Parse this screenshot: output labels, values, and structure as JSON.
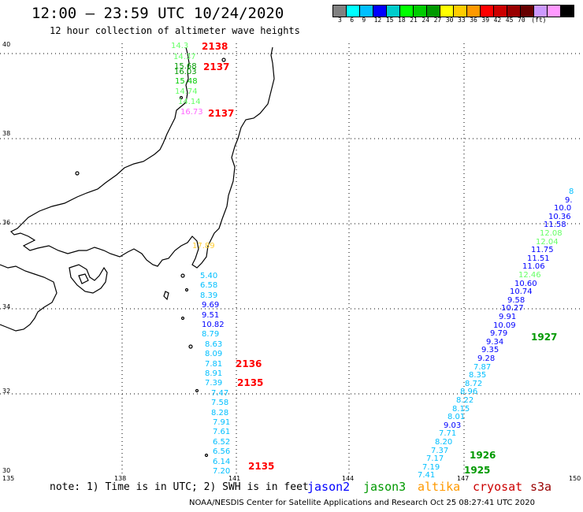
{
  "title": "12:00 – 23:59 UTC 10/24/2020",
  "subtitle": "12 hour collection of altimeter wave heights",
  "legend": {
    "colors": [
      "#808080",
      "#00ffff",
      "#00bfff",
      "#0000ff",
      "#00cccc",
      "#00ff00",
      "#00cc00",
      "#009900",
      "#ffff00",
      "#ffcc00",
      "#ff9900",
      "#ff0000",
      "#cc0000",
      "#990000",
      "#660000",
      "#cc99ff",
      "#ff99ff",
      "#000000"
    ],
    "labels": [
      "3",
      "6",
      "9",
      "12",
      "15",
      "18",
      "21",
      "24",
      "27",
      "30",
      "33",
      "36",
      "39",
      "42",
      "45",
      "70",
      "(ft)"
    ]
  },
  "lat_labels": [
    "40",
    "38",
    "36",
    "34",
    "32",
    "30"
  ],
  "lon_labels": [
    "135",
    "138",
    "141",
    "144",
    "147",
    "150"
  ],
  "note": "note: 1) Time is in UTC; 2) SWH is in feet",
  "satellites": [
    "jason2",
    "jason3",
    "altika",
    "cryosat",
    "s3a"
  ],
  "satellite_colors": [
    "#0000ff",
    "#009900",
    "#ff9900",
    "#cc0000",
    "#990000"
  ],
  "credit": "NOAA/NESDIS Center for Satellite Applications and Research    Oct 25 08:27:41 UTC 2020",
  "track_west_north": [
    "14.3",
    "14.37",
    "15.68",
    "16.03",
    "15.48",
    "14.74",
    "14.14",
    "16.73"
  ],
  "track_west_north_colors": [
    "#66ff66",
    "#66ff66",
    "#009900",
    "#009900",
    "#00cc00",
    "#66ff66",
    "#66ff66",
    "#ff66ff"
  ],
  "track_west_mid": "17.89",
  "track_west_south": [
    "5.40",
    "6.58",
    "8.39",
    "9.69",
    "9.51",
    "10.82",
    "8.79",
    "8.63",
    "8.09",
    "7.81",
    "8.91",
    "7.39",
    "7.47",
    "7.58",
    "8.28",
    "7.91",
    "7.61",
    "6.52",
    "6.56",
    "6.14",
    "7.20"
  ],
  "track_west_south_colors": [
    "#00bfff",
    "#00bfff",
    "#00bfff",
    "#0000ff",
    "#0000ff",
    "#0000ff",
    "#00bfff",
    "#00bfff",
    "#00bfff",
    "#00bfff",
    "#00bfff",
    "#00bfff",
    "#00bfff",
    "#00bfff",
    "#00bfff",
    "#00bfff",
    "#00bfff",
    "#00bfff",
    "#00bfff",
    "#00bfff",
    "#00bfff"
  ],
  "track_east": [
    "8",
    "9.",
    "10.0",
    "10.36",
    "11.58",
    "12.08",
    "12.04",
    "11.75",
    "11.51",
    "11.06",
    "12.46",
    "10.60",
    "10.74",
    "9.58",
    "10.27",
    "9.91",
    "10.09",
    "9.79",
    "9.34",
    "9.35",
    "9.28",
    "7.87",
    "8.35",
    "8.72",
    "8.96",
    "8.22",
    "8.15",
    "8.01",
    "9.03",
    "7.71",
    "8.20",
    "7.37",
    "7.17",
    "7.19",
    "7.41"
  ],
  "track_east_colors": [
    "#00bfff",
    "#0000ff",
    "#0000ff",
    "#0000ff",
    "#0000ff",
    "#66ff66",
    "#66ff66",
    "#0000ff",
    "#0000ff",
    "#0000ff",
    "#66ff66",
    "#0000ff",
    "#0000ff",
    "#0000ff",
    "#0000ff",
    "#0000ff",
    "#0000ff",
    "#0000ff",
    "#0000ff",
    "#0000ff",
    "#0000ff",
    "#00bfff",
    "#00bfff",
    "#00bfff",
    "#00bfff",
    "#00bfff",
    "#00bfff",
    "#00bfff",
    "#0000ff",
    "#00bfff",
    "#00bfff",
    "#00bfff",
    "#00bfff",
    "#00bfff",
    "#00bfff"
  ],
  "pass_labels": [
    "2138",
    "2137",
    "2137",
    "2136",
    "2135",
    "2135",
    "1927",
    "1926",
    "1925"
  ],
  "pass_label_colors": [
    "#ff0000",
    "#ff0000",
    "#ff0000",
    "#ff0000",
    "#ff0000",
    "#ff0000",
    "#009900",
    "#009900",
    "#009900"
  ]
}
